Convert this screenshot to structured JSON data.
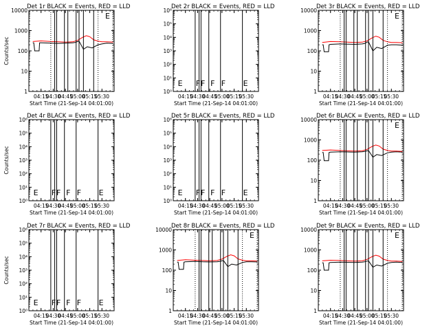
{
  "figure": {
    "time_axis_label": "Start Time (21-Sep-14 04:01:00)",
    "y_axis_label": "Counts/sec",
    "time_ticks": [
      "04:15",
      "04:30",
      "04:45",
      "05:00",
      "05:15",
      "05:30"
    ],
    "colors": {
      "events": "#000000",
      "lld": "#ff0000"
    }
  },
  "chart_data": [
    {
      "type": "line",
      "panel": "Det 1r",
      "title": "Det 1r BLACK = Events, RED = LLD",
      "scale": "log",
      "ylim": [
        1,
        10000
      ],
      "y_ticks": [
        {
          "v": 1,
          "label": "1"
        },
        {
          "v": 10,
          "label": "10"
        },
        {
          "v": 100,
          "label": "100"
        },
        {
          "v": 1000,
          "label": "1000"
        },
        {
          "v": 10000,
          "label": "10000"
        }
      ],
      "has_data": true,
      "xlabel": "Start Time (21-Sep-14 04:01:00)",
      "ylabel": "Counts/sec",
      "vlines": [
        4.45,
        4.53,
        4.57,
        4.73,
        4.8,
        4.97,
        5.03,
        5.12,
        5.33,
        5.42
      ],
      "markers": [],
      "series": [
        {
          "name": "Events",
          "color": "#000000",
          "x": [
            4.08,
            4.1,
            4.12,
            4.21,
            4.22,
            4.25,
            4.45,
            4.6,
            4.75,
            4.9,
            4.95,
            5.0,
            5.03,
            5.12,
            5.2,
            5.3,
            5.42,
            5.5,
            5.6,
            5.73
          ],
          "y": [
            250,
            250,
            100,
            100,
            250,
            250,
            240,
            235,
            240,
            250,
            260,
            290,
            300,
            120,
            160,
            140,
            200,
            220,
            240,
            230
          ]
        },
        {
          "name": "LLD",
          "color": "#ff0000",
          "x": [
            4.08,
            4.25,
            4.45,
            4.6,
            4.75,
            4.9,
            5.0,
            5.1,
            5.18,
            5.25,
            5.33,
            5.42,
            5.5,
            5.6,
            5.73
          ],
          "y": [
            290,
            310,
            290,
            280,
            270,
            280,
            330,
            460,
            560,
            500,
            350,
            300,
            280,
            280,
            270
          ]
        }
      ]
    },
    {
      "type": "line",
      "panel": "Det 2r",
      "title": "Det 2r BLACK = Events, RED = LLD",
      "scale": "log",
      "ylim": [
        1,
        1000000
      ],
      "y_ticks": [
        {
          "v": 1,
          "label": "10⁰"
        },
        {
          "v": 10,
          "label": "10¹"
        },
        {
          "v": 100,
          "label": "10²"
        },
        {
          "v": 1000,
          "label": "10³"
        },
        {
          "v": 10000,
          "label": "10⁴"
        },
        {
          "v": 100000,
          "label": "10⁵"
        },
        {
          "v": 1000000,
          "label": "10⁶"
        }
      ],
      "has_data": false,
      "xlabel": "Start Time (21-Sep-14 04:01:00)",
      "ylabel": "",
      "vlines": [
        4.45,
        4.53,
        4.57,
        4.73,
        4.97,
        5.42
      ],
      "markers": [
        {
          "x": 4.08,
          "label": "E"
        },
        {
          "x": 4.45,
          "label": "F"
        },
        {
          "x": 4.55,
          "label": "F"
        },
        {
          "x": 4.75,
          "label": "F"
        },
        {
          "x": 4.97,
          "label": "F"
        },
        {
          "x": 5.42,
          "label": "E"
        }
      ],
      "series": []
    },
    {
      "type": "line",
      "panel": "Det 3r",
      "title": "Det 3r BLACK = Events, RED = LLD",
      "scale": "log",
      "ylim": [
        1,
        10000
      ],
      "y_ticks": [
        {
          "v": 1,
          "label": "1"
        },
        {
          "v": 10,
          "label": "10"
        },
        {
          "v": 100,
          "label": "100"
        },
        {
          "v": 1000,
          "label": "1000"
        },
        {
          "v": 10000,
          "label": "10000"
        }
      ],
      "has_data": true,
      "xlabel": "Start Time (21-Sep-14 04:01:00)",
      "ylabel": "",
      "vlines": [
        4.45,
        4.53,
        4.57,
        4.73,
        4.8,
        4.97,
        5.03,
        5.12,
        5.33,
        5.42
      ],
      "markers": [],
      "series": [
        {
          "name": "Events",
          "color": "#000000",
          "x": [
            4.08,
            4.1,
            4.12,
            4.21,
            4.22,
            4.25,
            4.45,
            4.6,
            4.75,
            4.9,
            4.95,
            5.0,
            5.03,
            5.12,
            5.2,
            5.3,
            5.42,
            5.5,
            5.6,
            5.73
          ],
          "y": [
            200,
            200,
            90,
            90,
            200,
            210,
            220,
            215,
            210,
            220,
            230,
            270,
            280,
            100,
            150,
            130,
            190,
            200,
            200,
            190
          ]
        },
        {
          "name": "LLD",
          "color": "#ff0000",
          "x": [
            4.08,
            4.25,
            4.45,
            4.6,
            4.75,
            4.9,
            5.0,
            5.1,
            5.18,
            5.25,
            5.33,
            5.42,
            5.5,
            5.6,
            5.73
          ],
          "y": [
            260,
            290,
            280,
            270,
            260,
            270,
            310,
            430,
            530,
            470,
            330,
            280,
            260,
            260,
            250
          ]
        }
      ]
    },
    {
      "type": "line",
      "panel": "Det 4r",
      "title": "Det 4r BLACK = Events, RED = LLD",
      "scale": "log",
      "ylim": [
        1,
        1000000
      ],
      "y_ticks": [
        {
          "v": 1,
          "label": "10⁰"
        },
        {
          "v": 10,
          "label": "10¹"
        },
        {
          "v": 100,
          "label": "10²"
        },
        {
          "v": 1000,
          "label": "10³"
        },
        {
          "v": 10000,
          "label": "10⁴"
        },
        {
          "v": 100000,
          "label": "10⁵"
        },
        {
          "v": 1000000,
          "label": "10⁶"
        }
      ],
      "has_data": false,
      "xlabel": "Start Time (21-Sep-14 04:01:00)",
      "ylabel": "Counts/sec",
      "vlines": [
        4.45,
        4.53,
        4.57,
        4.73,
        4.97,
        5.42
      ],
      "markers": [
        {
          "x": 4.08,
          "label": "E"
        },
        {
          "x": 4.45,
          "label": "F"
        },
        {
          "x": 4.55,
          "label": "F"
        },
        {
          "x": 4.75,
          "label": "F"
        },
        {
          "x": 4.97,
          "label": "F"
        },
        {
          "x": 5.42,
          "label": "E"
        }
      ],
      "series": []
    },
    {
      "type": "line",
      "panel": "Det 5r",
      "title": "Det 5r BLACK = Events, RED = LLD",
      "scale": "log",
      "ylim": [
        1,
        1000000
      ],
      "y_ticks": [
        {
          "v": 1,
          "label": "10⁰"
        },
        {
          "v": 10,
          "label": "10¹"
        },
        {
          "v": 100,
          "label": "10²"
        },
        {
          "v": 1000,
          "label": "10³"
        },
        {
          "v": 10000,
          "label": "10⁴"
        },
        {
          "v": 100000,
          "label": "10⁵"
        },
        {
          "v": 1000000,
          "label": "10⁶"
        }
      ],
      "has_data": false,
      "xlabel": "Start Time (21-Sep-14 04:01:00)",
      "ylabel": "",
      "vlines": [
        4.45,
        4.53,
        4.57,
        4.73,
        4.97,
        5.42
      ],
      "markers": [
        {
          "x": 4.08,
          "label": "E"
        },
        {
          "x": 4.45,
          "label": "F"
        },
        {
          "x": 4.55,
          "label": "F"
        },
        {
          "x": 4.75,
          "label": "F"
        },
        {
          "x": 4.97,
          "label": "F"
        },
        {
          "x": 5.42,
          "label": "E"
        }
      ],
      "series": []
    },
    {
      "type": "line",
      "panel": "Det 6r",
      "title": "Det 6r BLACK = Events, RED = LLD",
      "scale": "log",
      "ylim": [
        1,
        10000
      ],
      "y_ticks": [
        {
          "v": 1,
          "label": "1"
        },
        {
          "v": 10,
          "label": "10"
        },
        {
          "v": 100,
          "label": "100"
        },
        {
          "v": 1000,
          "label": "1000"
        },
        {
          "v": 10000,
          "label": "10000"
        }
      ],
      "has_data": true,
      "xlabel": "Start Time (21-Sep-14 04:01:00)",
      "ylabel": "",
      "vlines": [
        4.45,
        4.53,
        4.57,
        4.73,
        4.8,
        4.97,
        5.03,
        5.12,
        5.33,
        5.42
      ],
      "markers": [],
      "series": [
        {
          "name": "Events",
          "color": "#000000",
          "x": [
            4.08,
            4.1,
            4.12,
            4.21,
            4.22,
            4.25,
            4.45,
            4.6,
            4.75,
            4.9,
            4.95,
            5.0,
            5.03,
            5.12,
            5.2,
            5.3,
            5.42,
            5.5,
            5.6,
            5.73
          ],
          "y": [
            240,
            240,
            95,
            95,
            240,
            250,
            260,
            255,
            250,
            260,
            270,
            290,
            300,
            140,
            190,
            170,
            230,
            250,
            260,
            250
          ]
        },
        {
          "name": "LLD",
          "color": "#ff0000",
          "x": [
            4.08,
            4.25,
            4.45,
            4.6,
            4.75,
            4.9,
            5.0,
            5.1,
            5.18,
            5.25,
            5.33,
            5.42,
            5.5,
            5.6,
            5.73
          ],
          "y": [
            300,
            320,
            300,
            290,
            280,
            290,
            340,
            470,
            560,
            500,
            350,
            300,
            280,
            280,
            270
          ]
        }
      ]
    },
    {
      "type": "line",
      "panel": "Det 7r",
      "title": "Det 7r BLACK = Events, RED = LLD",
      "scale": "log",
      "ylim": [
        1,
        1000000
      ],
      "y_ticks": [
        {
          "v": 1,
          "label": "10⁰"
        },
        {
          "v": 10,
          "label": "10¹"
        },
        {
          "v": 100,
          "label": "10²"
        },
        {
          "v": 1000,
          "label": "10³"
        },
        {
          "v": 10000,
          "label": "10⁴"
        },
        {
          "v": 100000,
          "label": "10⁵"
        },
        {
          "v": 1000000,
          "label": "10⁶"
        }
      ],
      "has_data": false,
      "xlabel": "Start Time (21-Sep-14 04:01:00)",
      "ylabel": "Counts/sec",
      "vlines": [
        4.45,
        4.53,
        4.57,
        4.73,
        4.97,
        5.42
      ],
      "markers": [
        {
          "x": 4.08,
          "label": "E"
        },
        {
          "x": 4.45,
          "label": "F"
        },
        {
          "x": 4.55,
          "label": "F"
        },
        {
          "x": 4.75,
          "label": "F"
        },
        {
          "x": 4.97,
          "label": "F"
        },
        {
          "x": 5.42,
          "label": "E"
        }
      ],
      "series": []
    },
    {
      "type": "line",
      "panel": "Det 8r",
      "title": "Det 8r BLACK = Events, RED = LLD",
      "scale": "log",
      "ylim": [
        1,
        10000
      ],
      "y_ticks": [
        {
          "v": 1,
          "label": "1"
        },
        {
          "v": 10,
          "label": "10"
        },
        {
          "v": 100,
          "label": "100"
        },
        {
          "v": 1000,
          "label": "1000"
        },
        {
          "v": 10000,
          "label": "10000"
        }
      ],
      "has_data": true,
      "xlabel": "Start Time (21-Sep-14 04:01:00)",
      "ylabel": "",
      "vlines": [
        4.45,
        4.53,
        4.57,
        4.73,
        4.8,
        4.97,
        5.03,
        5.12,
        5.33,
        5.42
      ],
      "markers": [],
      "series": [
        {
          "name": "Events",
          "color": "#000000",
          "x": [
            4.08,
            4.1,
            4.12,
            4.21,
            4.22,
            4.25,
            4.45,
            4.6,
            4.75,
            4.9,
            4.95,
            5.0,
            5.03,
            5.12,
            5.2,
            5.3,
            5.42,
            5.5,
            5.6,
            5.73
          ],
          "y": [
            250,
            250,
            110,
            110,
            250,
            260,
            270,
            260,
            255,
            260,
            270,
            290,
            300,
            150,
            200,
            180,
            240,
            260,
            260,
            255
          ]
        },
        {
          "name": "LLD",
          "color": "#ff0000",
          "x": [
            4.08,
            4.25,
            4.45,
            4.6,
            4.75,
            4.9,
            5.0,
            5.1,
            5.18,
            5.25,
            5.33,
            5.42,
            5.5,
            5.6,
            5.73
          ],
          "y": [
            300,
            330,
            310,
            300,
            290,
            300,
            350,
            480,
            570,
            510,
            360,
            310,
            290,
            290,
            280
          ]
        }
      ]
    },
    {
      "type": "line",
      "panel": "Det 9r",
      "title": "Det 9r BLACK = Events, RED = LLD",
      "scale": "log",
      "ylim": [
        1,
        10000
      ],
      "y_ticks": [
        {
          "v": 1,
          "label": "1"
        },
        {
          "v": 10,
          "label": "10"
        },
        {
          "v": 100,
          "label": "100"
        },
        {
          "v": 1000,
          "label": "1000"
        },
        {
          "v": 10000,
          "label": "10000"
        }
      ],
      "has_data": true,
      "xlabel": "Start Time (21-Sep-14 04:01:00)",
      "ylabel": "",
      "vlines": [
        4.45,
        4.53,
        4.57,
        4.73,
        4.8,
        4.97,
        5.03,
        5.12,
        5.33,
        5.42
      ],
      "markers": [],
      "series": [
        {
          "name": "Events",
          "color": "#000000",
          "x": [
            4.08,
            4.1,
            4.12,
            4.21,
            4.22,
            4.25,
            4.45,
            4.6,
            4.75,
            4.9,
            4.95,
            5.0,
            5.03,
            5.12,
            5.2,
            5.3,
            5.42,
            5.5,
            5.6,
            5.73
          ],
          "y": [
            230,
            230,
            100,
            100,
            230,
            240,
            250,
            245,
            240,
            250,
            260,
            280,
            290,
            140,
            180,
            160,
            220,
            240,
            250,
            240
          ]
        },
        {
          "name": "LLD",
          "color": "#ff0000",
          "x": [
            4.08,
            4.25,
            4.45,
            4.6,
            4.75,
            4.9,
            5.0,
            5.1,
            5.18,
            5.25,
            5.33,
            5.42,
            5.5,
            5.6,
            5.73
          ],
          "y": [
            290,
            310,
            300,
            290,
            280,
            290,
            340,
            460,
            550,
            490,
            350,
            300,
            280,
            280,
            270
          ]
        }
      ]
    }
  ]
}
